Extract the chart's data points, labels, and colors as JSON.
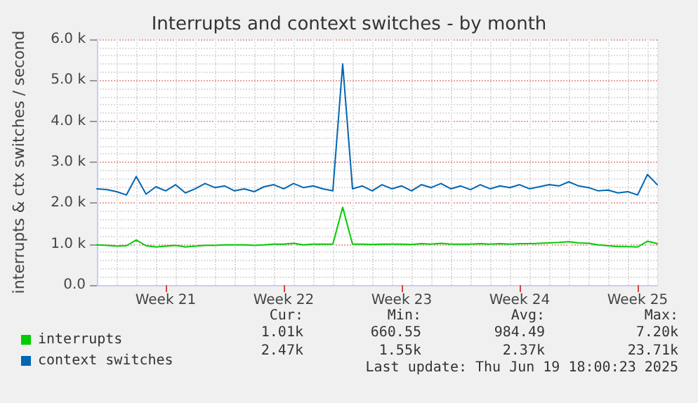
{
  "chart_data": {
    "type": "line",
    "title": "Interrupts and context switches - by month",
    "ylabel": "interrupts & ctx switches / second",
    "categories": [
      null,
      null,
      null,
      null,
      null,
      null,
      null,
      "Week 21",
      null,
      null,
      null,
      null,
      null,
      null,
      null,
      null,
      null,
      null,
      null,
      "Week 22",
      null,
      null,
      null,
      null,
      null,
      null,
      null,
      null,
      null,
      null,
      null,
      "Week 23",
      null,
      null,
      null,
      null,
      null,
      null,
      null,
      null,
      null,
      null,
      null,
      "Week 24",
      null,
      null,
      null,
      null,
      null,
      null,
      null,
      null,
      null,
      null,
      null,
      "Week 25",
      null,
      null
    ],
    "series": [
      {
        "name": "interrupts",
        "color": "#00cc00",
        "values": [
          980,
          970,
          950,
          960,
          1100,
          960,
          930,
          950,
          970,
          930,
          950,
          970,
          970,
          980,
          980,
          980,
          970,
          980,
          1000,
          1000,
          1020,
          980,
          1000,
          1000,
          1000,
          1900,
          1000,
          1000,
          990,
          1000,
          1000,
          1000,
          990,
          1010,
          1000,
          1020,
          1000,
          1000,
          1000,
          1010,
          1000,
          1010,
          1000,
          1010,
          1010,
          1020,
          1030,
          1040,
          1060,
          1030,
          1020,
          980,
          960,
          940,
          940,
          930,
          1070,
          1010
        ]
      },
      {
        "name": "context switches",
        "color": "#0066b3",
        "values": [
          2350,
          2330,
          2280,
          2200,
          2650,
          2220,
          2400,
          2300,
          2450,
          2250,
          2350,
          2480,
          2380,
          2420,
          2300,
          2350,
          2280,
          2400,
          2450,
          2350,
          2480,
          2380,
          2420,
          2350,
          2300,
          5400,
          2350,
          2420,
          2300,
          2450,
          2350,
          2420,
          2300,
          2450,
          2380,
          2480,
          2350,
          2420,
          2330,
          2450,
          2350,
          2420,
          2380,
          2450,
          2350,
          2400,
          2450,
          2420,
          2520,
          2420,
          2380,
          2300,
          2320,
          2250,
          2280,
          2200,
          2700,
          2450
        ]
      }
    ],
    "ylim": [
      0,
      6000
    ],
    "yticks": [
      {
        "value": 0,
        "label": "0.0"
      },
      {
        "value": 1000,
        "label": "1.0 k"
      },
      {
        "value": 2000,
        "label": "2.0 k"
      },
      {
        "value": 3000,
        "label": "3.0 k"
      },
      {
        "value": 4000,
        "label": "4.0 k"
      },
      {
        "value": 5000,
        "label": "5.0 k"
      },
      {
        "value": 6000,
        "label": "6.0 k"
      }
    ],
    "grid": true,
    "legend": "bottom left",
    "marker": "none",
    "line_style": "solid",
    "annotations": [
      "Cur:",
      "Min:",
      "Avg:",
      "Max:",
      "1.01k",
      "660.55",
      "984.49",
      "7.20k",
      "2.47k",
      "1.55k",
      "2.37k",
      "23.71k",
      "Last update: Thu Jun 19 18:00:23 2025"
    ]
  }
}
